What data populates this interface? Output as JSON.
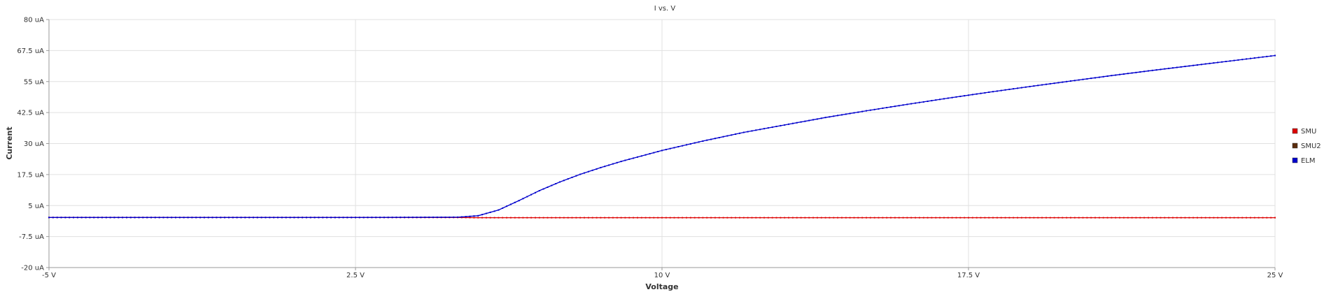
{
  "chart_data": {
    "type": "line",
    "title": "I vs. V",
    "xlabel": "Voltage",
    "ylabel": "Current",
    "xlim": [
      -5,
      25
    ],
    "ylim": [
      -20,
      80
    ],
    "grid": true,
    "legend_placement": "right",
    "x_ticks": [
      {
        "value": -5,
        "label": "-5 V"
      },
      {
        "value": 2.5,
        "label": "2.5 V"
      },
      {
        "value": 10,
        "label": "10 V"
      },
      {
        "value": 17.5,
        "label": "17.5 V"
      },
      {
        "value": 25,
        "label": "25 V"
      }
    ],
    "y_ticks": [
      {
        "value": 80,
        "label": "80 uA"
      },
      {
        "value": 67.5,
        "label": "67.5 uA"
      },
      {
        "value": 55,
        "label": "55 uA"
      },
      {
        "value": 42.5,
        "label": "42.5 uA"
      },
      {
        "value": 30,
        "label": "30 uA"
      },
      {
        "value": 17.5,
        "label": "17.5 uA"
      },
      {
        "value": 5,
        "label": "5 uA"
      },
      {
        "value": -7.5,
        "label": "-7.5 uA"
      },
      {
        "value": -20,
        "label": "-20 uA"
      }
    ],
    "series": [
      {
        "name": "SMU",
        "color": "#dd0000",
        "x": [
          -5,
          0,
          5,
          5.5,
          6,
          6.5,
          7,
          8,
          9,
          10,
          12.5,
          15,
          17.5,
          20,
          22.5,
          25
        ],
        "y": [
          0.2,
          0.2,
          0.2,
          0.1,
          0.1,
          0.1,
          0.1,
          0.1,
          0.1,
          0.1,
          0.1,
          0.1,
          0.1,
          0.1,
          0.1,
          0.1
        ]
      },
      {
        "name": "SMU2",
        "color": "#5a2d0c",
        "x": [],
        "y": []
      },
      {
        "name": "ELM",
        "color": "#0000cc",
        "x": [
          -5,
          0,
          2.5,
          5,
          5.5,
          6,
          6.5,
          7,
          7.5,
          8,
          8.5,
          9,
          9.5,
          10,
          11,
          12,
          13,
          14,
          15,
          16,
          17,
          18,
          19,
          20,
          21,
          22,
          23,
          24,
          25
        ],
        "y": [
          0.2,
          0.2,
          0.2,
          0.3,
          0.9,
          3.2,
          7.0,
          11.0,
          14.5,
          17.6,
          20.3,
          22.8,
          25.0,
          27.2,
          31.0,
          34.5,
          37.5,
          40.5,
          43.2,
          45.8,
          48.3,
          50.7,
          53.0,
          55.2,
          57.4,
          59.5,
          61.5,
          63.5,
          65.5
        ]
      }
    ]
  }
}
